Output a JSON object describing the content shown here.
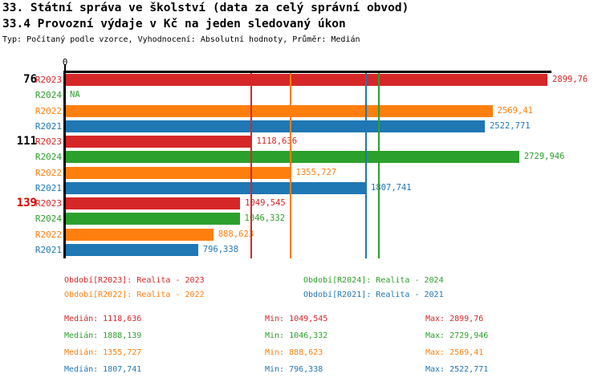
{
  "header": {
    "title1": "33. Státní správa ve školství (data za celý správní obvod)",
    "title2": "33.4 Provozní výdaje v Kč na jeden sledovaný úkon",
    "subtitle": "Typ: Počítaný podle vzorce, Vyhodnocení: Absolutní hodnoty, Průměr: Medián"
  },
  "colors": {
    "R2023": "#d62728",
    "R2024": "#2ca02c",
    "R2022": "#ff7f0e",
    "R2021": "#1f77b4",
    "group_highlight": "#dd0000",
    "group_normal": "#000000",
    "axis": "#000000"
  },
  "chart_data": {
    "type": "bar",
    "orientation": "horizontal",
    "title": "33.4 Provozní výdaje v Kč na jeden sledovaný úkon",
    "xlim": [
      0,
      2924
    ],
    "x_axis": {
      "position": "top",
      "tick_labels": [
        "0"
      ]
    },
    "series_order": [
      "R2023",
      "R2024",
      "R2022",
      "R2021"
    ],
    "groups": [
      {
        "label": "76",
        "highlighted": false,
        "bars": [
          {
            "series": "R2023",
            "value": 2899.76,
            "display": "2899,76"
          },
          {
            "series": "R2024",
            "value": null,
            "display": "NA"
          },
          {
            "series": "R2022",
            "value": 2569.41,
            "display": "2569,41"
          },
          {
            "series": "R2021",
            "value": 2522.771,
            "display": "2522,771"
          }
        ]
      },
      {
        "label": "111",
        "highlighted": false,
        "bars": [
          {
            "series": "R2023",
            "value": 1118.636,
            "display": "1118,636"
          },
          {
            "series": "R2024",
            "value": 2729.946,
            "display": "2729,946"
          },
          {
            "series": "R2022",
            "value": 1355.727,
            "display": "1355,727"
          },
          {
            "series": "R2021",
            "value": 1807.741,
            "display": "1807,741"
          }
        ]
      },
      {
        "label": "139",
        "highlighted": true,
        "bars": [
          {
            "series": "R2023",
            "value": 1049.545,
            "display": "1049,545"
          },
          {
            "series": "R2024",
            "value": 1046.332,
            "display": "1046,332"
          },
          {
            "series": "R2022",
            "value": 888.623,
            "display": "888,623"
          },
          {
            "series": "R2021",
            "value": 796.338,
            "display": "796,338"
          }
        ]
      }
    ],
    "median_lines": [
      {
        "series": "R2023",
        "value": 1118.636
      },
      {
        "series": "R2024",
        "value": 1888.139
      },
      {
        "series": "R2022",
        "value": 1355.727
      },
      {
        "series": "R2021",
        "value": 1807.741
      }
    ]
  },
  "legend": {
    "items": [
      {
        "series": "R2023",
        "label": "Období[R2023]: Realita - 2023"
      },
      {
        "series": "R2024",
        "label": "Období[R2024]: Realita - 2024"
      },
      {
        "series": "R2022",
        "label": "Období[R2022]: Realita - 2022"
      },
      {
        "series": "R2021",
        "label": "Období[R2021]: Realita - 2021"
      }
    ]
  },
  "stats": {
    "rows": [
      {
        "series": "R2023",
        "median": "Medián: 1118,636",
        "min": "Min: 1049,545",
        "max": "Max: 2899,76"
      },
      {
        "series": "R2024",
        "median": "Medián: 1888,139",
        "min": "Min: 1046,332",
        "max": "Max: 2729,946"
      },
      {
        "series": "R2022",
        "median": "Medián: 1355,727",
        "min": "Min: 888,623",
        "max": "Max: 2569,41"
      },
      {
        "series": "R2021",
        "median": "Medián: 1807,741",
        "min": "Min: 796,338",
        "max": "Max: 2522,771"
      }
    ]
  }
}
